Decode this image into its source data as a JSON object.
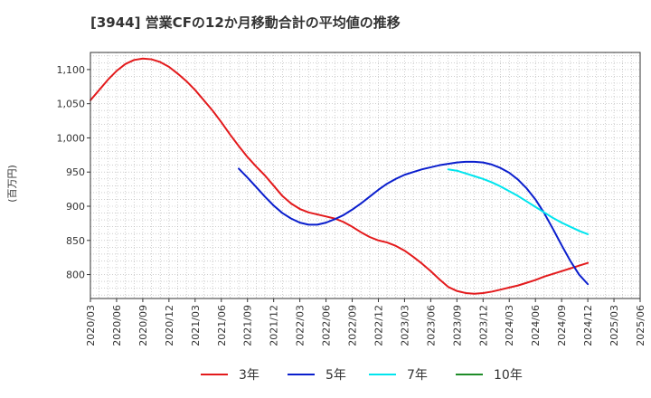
{
  "chart_data": {
    "type": "line",
    "title": "[3944]  営業CFの12か月移動合計の平均値の推移",
    "ylabel": "(百万円)",
    "xlabel": "",
    "ylim": [
      765,
      1125
    ],
    "y_ticks": [
      800,
      850,
      900,
      950,
      1000,
      1050,
      1100
    ],
    "y_tick_labels": [
      "800",
      "850",
      "900",
      "950",
      "1,000",
      "1,050",
      "1,100"
    ],
    "x_ticks": [
      "2020/03",
      "2020/06",
      "2020/09",
      "2020/12",
      "2021/03",
      "2021/06",
      "2021/09",
      "2021/12",
      "2022/03",
      "2022/06",
      "2022/09",
      "2022/12",
      "2023/03",
      "2023/06",
      "2023/09",
      "2023/12",
      "2024/03",
      "2024/06",
      "2024/09",
      "2024/12",
      "2025/03",
      "2025/06"
    ],
    "grid": true,
    "legend_position": "bottom",
    "series": [
      {
        "name": "3年",
        "color": "#e31a1c",
        "x": [
          "2020/03",
          "2020/04",
          "2020/05",
          "2020/06",
          "2020/07",
          "2020/08",
          "2020/09",
          "2020/10",
          "2020/11",
          "2020/12",
          "2021/01",
          "2021/02",
          "2021/03",
          "2021/04",
          "2021/05",
          "2021/06",
          "2021/07",
          "2021/08",
          "2021/09",
          "2021/10",
          "2021/11",
          "2021/12",
          "2022/01",
          "2022/02",
          "2022/03",
          "2022/04",
          "2022/05",
          "2022/06",
          "2022/07",
          "2022/08",
          "2022/09",
          "2022/10",
          "2022/11",
          "2022/12",
          "2023/01",
          "2023/02",
          "2023/03",
          "2023/04",
          "2023/05",
          "2023/06",
          "2023/07",
          "2023/08",
          "2023/09",
          "2023/10",
          "2023/11",
          "2023/12",
          "2024/01",
          "2024/02",
          "2024/03",
          "2024/04",
          "2024/05",
          "2024/06",
          "2024/07",
          "2024/08",
          "2024/09",
          "2024/10",
          "2024/11",
          "2024/12"
        ],
        "values": [
          1055,
          1070,
          1085,
          1098,
          1108,
          1114,
          1116,
          1115,
          1111,
          1104,
          1094,
          1083,
          1070,
          1055,
          1040,
          1023,
          1005,
          988,
          972,
          958,
          945,
          930,
          915,
          904,
          896,
          891,
          888,
          885,
          882,
          877,
          870,
          862,
          855,
          850,
          847,
          842,
          835,
          826,
          816,
          805,
          793,
          782,
          776,
          773,
          772,
          773,
          775,
          778,
          781,
          784,
          788,
          792,
          797,
          801,
          805,
          809,
          813,
          817
        ]
      },
      {
        "name": "5年",
        "color": "#0a1ecd",
        "x": [
          "2021/08",
          "2021/09",
          "2021/10",
          "2021/11",
          "2021/12",
          "2022/01",
          "2022/02",
          "2022/03",
          "2022/04",
          "2022/05",
          "2022/06",
          "2022/07",
          "2022/08",
          "2022/09",
          "2022/10",
          "2022/11",
          "2022/12",
          "2023/01",
          "2023/02",
          "2023/03",
          "2023/04",
          "2023/05",
          "2023/06",
          "2023/07",
          "2023/08",
          "2023/09",
          "2023/10",
          "2023/11",
          "2023/12",
          "2024/01",
          "2024/02",
          "2024/03",
          "2024/04",
          "2024/05",
          "2024/06",
          "2024/07",
          "2024/08",
          "2024/09",
          "2024/10",
          "2024/11",
          "2024/12"
        ],
        "values": [
          955,
          942,
          928,
          914,
          901,
          890,
          882,
          876,
          873,
          873,
          876,
          881,
          887,
          895,
          904,
          914,
          924,
          933,
          940,
          946,
          950,
          954,
          957,
          960,
          962,
          964,
          965,
          965,
          964,
          961,
          956,
          949,
          939,
          926,
          910,
          890,
          867,
          843,
          820,
          800,
          786
        ]
      },
      {
        "name": "7年",
        "color": "#00e5ee",
        "x": [
          "2023/08",
          "2023/09",
          "2023/10",
          "2023/11",
          "2023/12",
          "2024/01",
          "2024/02",
          "2024/03",
          "2024/04",
          "2024/05",
          "2024/06",
          "2024/07",
          "2024/08",
          "2024/09",
          "2024/10",
          "2024/11",
          "2024/12"
        ],
        "values": [
          954,
          952,
          948,
          944,
          940,
          935,
          929,
          922,
          915,
          907,
          899,
          891,
          883,
          876,
          870,
          864,
          859
        ]
      },
      {
        "name": "10年",
        "color": "#1e8c28",
        "x": [],
        "values": []
      }
    ]
  }
}
